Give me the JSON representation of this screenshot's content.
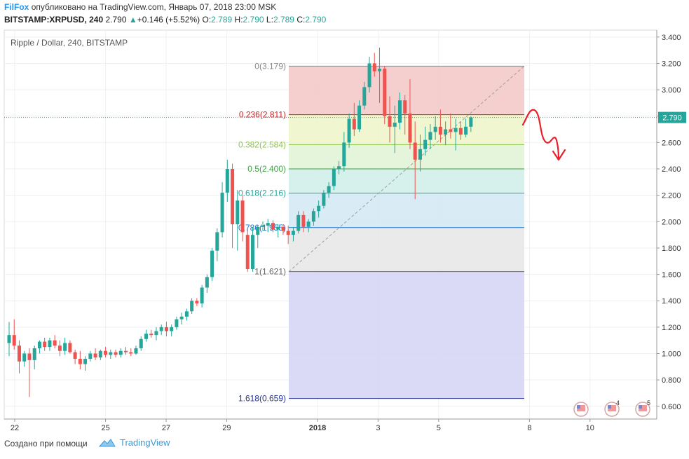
{
  "header": {
    "user": "FilFox",
    "published_text": "опубликовано на TradingView.com, Январь 07, 2018 23:00 MSK",
    "symbol": "BITSTAMP:XRPUSD, 240",
    "last": "2.790",
    "change": "+0.146 (+5.52%)",
    "o_label": "O:",
    "o_value": "2.789",
    "h_label": "H:",
    "h_value": "2.790",
    "l_label": "L:",
    "l_value": "2.789",
    "c_label": "C:",
    "c_value": "2.790"
  },
  "footer": {
    "created_with": "Создано при помощи",
    "brand": "TradingView"
  },
  "chart_data": {
    "type": "candlestick",
    "title": "Ripple / Dollar, 240, BITSTAMP",
    "ylim": [
      0.5,
      3.5
    ],
    "y_ticks": [
      "3.400",
      "3.200",
      "3.000",
      "2.800",
      "2.600",
      "2.400",
      "2.200",
      "2.000",
      "1.800",
      "1.600",
      "1.400",
      "1.200",
      "1.000",
      "0.800",
      "0.600"
    ],
    "x_ticks": [
      {
        "label": "22",
        "day": 22
      },
      {
        "label": "25",
        "day": 25
      },
      {
        "label": "27",
        "day": 27
      },
      {
        "label": "29",
        "day": 29
      },
      {
        "label": "2018",
        "day": 32
      },
      {
        "label": "3",
        "day": 34
      },
      {
        "label": "5",
        "day": 36
      },
      {
        "label": "8",
        "day": 39
      },
      {
        "label": "10",
        "day": 41
      }
    ],
    "last_price_label": "2.790",
    "up_color": "#26a69a",
    "down_color": "#ef5350",
    "candles": [
      {
        "o": 1.08,
        "h": 1.24,
        "l": 0.98,
        "c": 1.14
      },
      {
        "o": 1.14,
        "h": 1.26,
        "l": 1.03,
        "c": 1.06
      },
      {
        "o": 1.06,
        "h": 1.1,
        "l": 0.85,
        "c": 0.94
      },
      {
        "o": 0.94,
        "h": 1.02,
        "l": 0.9,
        "c": 1.0
      },
      {
        "o": 1.0,
        "h": 1.04,
        "l": 0.67,
        "c": 0.95
      },
      {
        "o": 0.95,
        "h": 1.06,
        "l": 0.88,
        "c": 1.04
      },
      {
        "o": 1.04,
        "h": 1.1,
        "l": 1.0,
        "c": 1.09
      },
      {
        "o": 1.09,
        "h": 1.12,
        "l": 1.02,
        "c": 1.05
      },
      {
        "o": 1.05,
        "h": 1.12,
        "l": 1.02,
        "c": 1.1
      },
      {
        "o": 1.1,
        "h": 1.14,
        "l": 1.04,
        "c": 1.06
      },
      {
        "o": 1.06,
        "h": 1.1,
        "l": 0.98,
        "c": 1.02
      },
      {
        "o": 1.02,
        "h": 1.12,
        "l": 0.99,
        "c": 1.08
      },
      {
        "o": 1.08,
        "h": 1.1,
        "l": 1.0,
        "c": 1.01
      },
      {
        "o": 1.01,
        "h": 1.03,
        "l": 0.92,
        "c": 0.96
      },
      {
        "o": 0.96,
        "h": 1.02,
        "l": 0.88,
        "c": 0.92
      },
      {
        "o": 0.92,
        "h": 0.98,
        "l": 0.87,
        "c": 0.96
      },
      {
        "o": 0.96,
        "h": 1.02,
        "l": 0.94,
        "c": 1.0
      },
      {
        "o": 1.0,
        "h": 1.04,
        "l": 0.95,
        "c": 0.97
      },
      {
        "o": 0.97,
        "h": 1.03,
        "l": 0.95,
        "c": 1.02
      },
      {
        "o": 1.02,
        "h": 1.05,
        "l": 0.97,
        "c": 0.99
      },
      {
        "o": 0.99,
        "h": 1.03,
        "l": 0.96,
        "c": 1.01
      },
      {
        "o": 1.01,
        "h": 1.03,
        "l": 0.97,
        "c": 0.99
      },
      {
        "o": 0.99,
        "h": 1.04,
        "l": 0.97,
        "c": 1.02
      },
      {
        "o": 1.02,
        "h": 1.05,
        "l": 0.99,
        "c": 1.01
      },
      {
        "o": 1.01,
        "h": 1.04,
        "l": 0.98,
        "c": 1.0
      },
      {
        "o": 1.0,
        "h": 1.06,
        "l": 0.99,
        "c": 1.04
      },
      {
        "o": 1.04,
        "h": 1.13,
        "l": 1.02,
        "c": 1.11
      },
      {
        "o": 1.11,
        "h": 1.18,
        "l": 1.09,
        "c": 1.15
      },
      {
        "o": 1.15,
        "h": 1.18,
        "l": 1.12,
        "c": 1.14
      },
      {
        "o": 1.14,
        "h": 1.2,
        "l": 1.1,
        "c": 1.17
      },
      {
        "o": 1.17,
        "h": 1.22,
        "l": 1.14,
        "c": 1.2
      },
      {
        "o": 1.2,
        "h": 1.24,
        "l": 1.13,
        "c": 1.17
      },
      {
        "o": 1.17,
        "h": 1.22,
        "l": 1.13,
        "c": 1.2
      },
      {
        "o": 1.2,
        "h": 1.28,
        "l": 1.18,
        "c": 1.26
      },
      {
        "o": 1.26,
        "h": 1.31,
        "l": 1.22,
        "c": 1.28
      },
      {
        "o": 1.28,
        "h": 1.34,
        "l": 1.25,
        "c": 1.32
      },
      {
        "o": 1.32,
        "h": 1.42,
        "l": 1.3,
        "c": 1.4
      },
      {
        "o": 1.4,
        "h": 1.42,
        "l": 1.36,
        "c": 1.38
      },
      {
        "o": 1.38,
        "h": 1.52,
        "l": 1.35,
        "c": 1.5
      },
      {
        "o": 1.5,
        "h": 1.6,
        "l": 1.46,
        "c": 1.58
      },
      {
        "o": 1.58,
        "h": 1.8,
        "l": 1.55,
        "c": 1.78
      },
      {
        "o": 1.78,
        "h": 1.95,
        "l": 1.7,
        "c": 1.92
      },
      {
        "o": 1.92,
        "h": 2.3,
        "l": 1.88,
        "c": 2.22
      },
      {
        "o": 2.22,
        "h": 2.47,
        "l": 2.15,
        "c": 2.4
      },
      {
        "o": 2.4,
        "h": 2.44,
        "l": 1.8,
        "c": 1.98
      },
      {
        "o": 1.98,
        "h": 2.24,
        "l": 1.78,
        "c": 2.16
      },
      {
        "o": 2.16,
        "h": 2.2,
        "l": 1.85,
        "c": 1.92
      },
      {
        "o": 1.9,
        "h": 1.94,
        "l": 1.62,
        "c": 1.64
      },
      {
        "o": 1.64,
        "h": 1.96,
        "l": 1.62,
        "c": 1.9
      },
      {
        "o": 1.9,
        "h": 1.97,
        "l": 1.8,
        "c": 1.96
      },
      {
        "o": 1.96,
        "h": 2.0,
        "l": 1.93,
        "c": 1.97
      },
      {
        "o": 1.97,
        "h": 2.02,
        "l": 1.92,
        "c": 1.99
      },
      {
        "o": 1.99,
        "h": 2.01,
        "l": 1.92,
        "c": 1.94
      },
      {
        "o": 1.94,
        "h": 1.98,
        "l": 1.88,
        "c": 1.96
      },
      {
        "o": 1.96,
        "h": 1.98,
        "l": 1.9,
        "c": 1.93
      },
      {
        "o": 1.93,
        "h": 1.97,
        "l": 1.83,
        "c": 1.9
      },
      {
        "o": 1.9,
        "h": 1.96,
        "l": 1.85,
        "c": 1.93
      },
      {
        "o": 1.93,
        "h": 2.08,
        "l": 1.91,
        "c": 2.05
      },
      {
        "o": 2.05,
        "h": 2.08,
        "l": 1.92,
        "c": 1.96
      },
      {
        "o": 1.96,
        "h": 2.02,
        "l": 1.92,
        "c": 2.0
      },
      {
        "o": 2.0,
        "h": 2.1,
        "l": 1.97,
        "c": 2.08
      },
      {
        "o": 2.08,
        "h": 2.16,
        "l": 2.03,
        "c": 2.12
      },
      {
        "o": 2.12,
        "h": 2.24,
        "l": 2.1,
        "c": 2.22
      },
      {
        "o": 2.22,
        "h": 2.3,
        "l": 2.18,
        "c": 2.27
      },
      {
        "o": 2.27,
        "h": 2.42,
        "l": 2.24,
        "c": 2.4
      },
      {
        "o": 2.4,
        "h": 2.46,
        "l": 2.36,
        "c": 2.42
      },
      {
        "o": 2.42,
        "h": 2.68,
        "l": 2.38,
        "c": 2.6
      },
      {
        "o": 2.6,
        "h": 2.82,
        "l": 2.56,
        "c": 2.78
      },
      {
        "o": 2.78,
        "h": 2.9,
        "l": 2.65,
        "c": 2.7
      },
      {
        "o": 2.7,
        "h": 2.92,
        "l": 2.68,
        "c": 2.88
      },
      {
        "o": 2.88,
        "h": 3.06,
        "l": 2.85,
        "c": 3.02
      },
      {
        "o": 3.02,
        "h": 3.25,
        "l": 2.98,
        "c": 3.2
      },
      {
        "o": 3.2,
        "h": 3.28,
        "l": 3.1,
        "c": 3.14
      },
      {
        "o": 3.14,
        "h": 3.32,
        "l": 2.9,
        "c": 3.16
      },
      {
        "o": 3.16,
        "h": 3.18,
        "l": 2.74,
        "c": 2.8
      },
      {
        "o": 2.8,
        "h": 2.95,
        "l": 2.6,
        "c": 2.72
      },
      {
        "o": 2.72,
        "h": 2.88,
        "l": 2.52,
        "c": 2.75
      },
      {
        "o": 2.75,
        "h": 2.98,
        "l": 2.7,
        "c": 2.92
      },
      {
        "o": 2.92,
        "h": 2.96,
        "l": 2.66,
        "c": 2.82
      },
      {
        "o": 2.82,
        "h": 3.08,
        "l": 2.55,
        "c": 2.6
      },
      {
        "o": 2.6,
        "h": 2.76,
        "l": 2.17,
        "c": 2.47
      },
      {
        "o": 2.47,
        "h": 2.66,
        "l": 2.38,
        "c": 2.55
      },
      {
        "o": 2.55,
        "h": 2.72,
        "l": 2.5,
        "c": 2.62
      },
      {
        "o": 2.62,
        "h": 2.74,
        "l": 2.55,
        "c": 2.68
      },
      {
        "o": 2.68,
        "h": 2.8,
        "l": 2.62,
        "c": 2.72
      },
      {
        "o": 2.72,
        "h": 2.85,
        "l": 2.6,
        "c": 2.66
      },
      {
        "o": 2.66,
        "h": 2.76,
        "l": 2.58,
        "c": 2.7
      },
      {
        "o": 2.7,
        "h": 2.82,
        "l": 2.63,
        "c": 2.68
      },
      {
        "o": 2.68,
        "h": 2.78,
        "l": 2.54,
        "c": 2.71
      },
      {
        "o": 2.71,
        "h": 2.76,
        "l": 2.62,
        "c": 2.66
      },
      {
        "o": 2.66,
        "h": 2.78,
        "l": 2.64,
        "c": 2.72
      },
      {
        "o": 2.72,
        "h": 2.8,
        "l": 2.68,
        "c": 2.79
      }
    ],
    "fib_levels": [
      {
        "label": "0(3.179)",
        "value": 3.179,
        "color": "#888888",
        "fill": "#f3c5c5"
      },
      {
        "label": "0.236(2.811)",
        "value": 2.811,
        "color": "#c62828",
        "fill": "#edf5c7"
      },
      {
        "label": "0.382(2.584)",
        "value": 2.584,
        "color": "#8bc34a",
        "fill": "#dff3d6"
      },
      {
        "label": "0.5(2.400)",
        "value": 2.4,
        "color": "#43a047",
        "fill": "#cfefe9"
      },
      {
        "label": "0.618(2.216)",
        "value": 2.216,
        "color": "#26a69a",
        "fill": "#d2e8f2"
      },
      {
        "label": "0.786(1.955)",
        "value": 1.955,
        "color": "#1976d2",
        "fill": "#e6e6e6"
      },
      {
        "label": "1(1.621)",
        "value": 1.621,
        "color": "#666666",
        "fill": "#d4d4f4"
      },
      {
        "label": "1.618(0.659)",
        "value": 0.659,
        "color": "#283593",
        "fill": "#f3c5c5"
      }
    ]
  }
}
